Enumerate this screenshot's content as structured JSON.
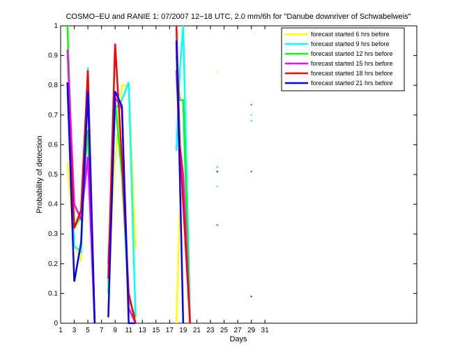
{
  "chart_data": {
    "type": "line",
    "title": "COSMO−EU and RANIE 1: 07/2007 12−18 UTC, 2.0 mm/6h for \"Danube downriver of Schwabelweis\"",
    "x_label": "Days",
    "y_label": "Probability of detection",
    "x": [
      2,
      3,
      4,
      5,
      6,
      7,
      8,
      9,
      10,
      11,
      12,
      13,
      18,
      18.5,
      19,
      20,
      21,
      24,
      25,
      29
    ],
    "series": [
      {
        "name": "forecast started 6 hrs before",
        "color": "#ffff00",
        "values": [
          0.54,
          0.26,
          0.21,
          0.85,
          0,
          null,
          0.18,
          0.55,
          0.8,
          0.8,
          0.25,
          null,
          0,
          0.37,
          0.47,
          0,
          null,
          0.845,
          null,
          null
        ]
      },
      {
        "name": "forecast started 9 hrs before",
        "color": "#00ffff",
        "values": [
          0.78,
          0.26,
          0.24,
          0.86,
          0,
          null,
          0.13,
          0.72,
          0.75,
          0.81,
          0.02,
          null,
          0.58,
          0.85,
          1.0,
          0.02,
          null,
          0.46,
          null,
          0.7
        ]
      },
      {
        "name": "forecast started 12 hrs before",
        "color": "#00ff00",
        "values": [
          1.0,
          0.32,
          0.36,
          0.65,
          0,
          null,
          0.1,
          0.75,
          0.5,
          0.08,
          0.02,
          null,
          0.9,
          0.75,
          0.75,
          0,
          null,
          0.525,
          null,
          0.68
        ]
      },
      {
        "name": "forecast started 15 hrs before",
        "color": "#ff00ff",
        "values": [
          0.92,
          0.4,
          0.35,
          0.56,
          0,
          null,
          0.2,
          0.76,
          0.72,
          0.05,
          0,
          null,
          0.85,
          0.6,
          0.5,
          0,
          null,
          0.33,
          null,
          0.735
        ]
      },
      {
        "name": "forecast started 18 hrs before",
        "color": "#ff0000",
        "values": [
          0.81,
          0.32,
          0.38,
          0.85,
          0,
          null,
          0.15,
          0.94,
          0.55,
          0.1,
          0,
          null,
          1.0,
          0.6,
          0.4,
          0,
          null,
          null,
          null,
          0.51
        ]
      },
      {
        "name": "forecast started 21 hrs before",
        "color": "#0000ff",
        "values": [
          0.81,
          0.14,
          0.27,
          0.78,
          0,
          null,
          0.02,
          0.78,
          0.73,
          0,
          0,
          null,
          0.95,
          0.5,
          0,
          null,
          null,
          0.51,
          null,
          0.09
        ]
      }
    ],
    "xlim": [
      1,
      53.3
    ],
    "ylim": [
      0,
      1
    ],
    "xticks": [
      1,
      3,
      5,
      7,
      9,
      11,
      13,
      15,
      17,
      19,
      21,
      23,
      25,
      27,
      29,
      31
    ],
    "yticks": [
      0,
      0.1,
      0.2,
      0.3,
      0.4,
      0.5,
      0.6,
      0.7,
      0.8,
      0.9,
      1
    ],
    "legend": "upper right"
  }
}
